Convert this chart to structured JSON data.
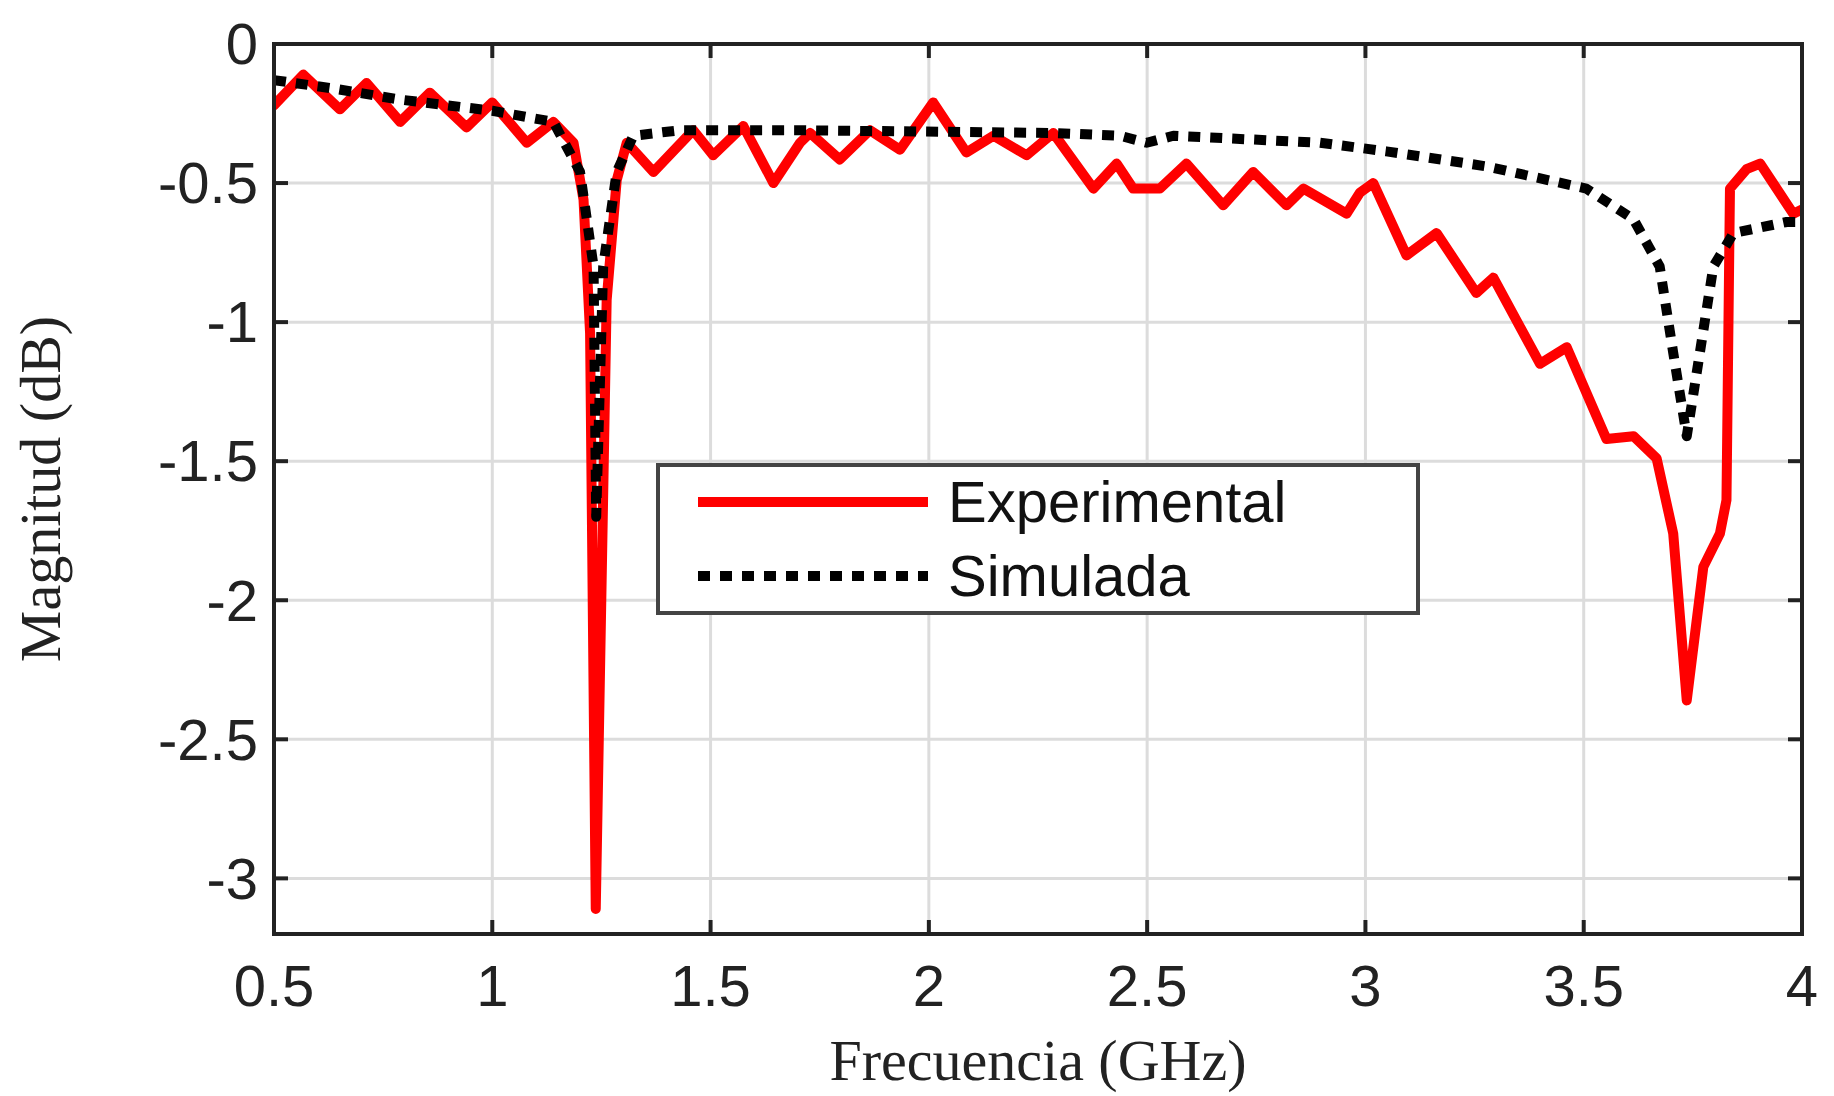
{
  "chart_data": {
    "type": "line",
    "xlabel": "Frecuencia (GHz)",
    "ylabel": "Magnitud (dB)",
    "xlim": [
      0.5,
      4
    ],
    "ylim": [
      -3.2,
      0
    ],
    "xticks": [
      0.5,
      1,
      1.5,
      2,
      2.5,
      3,
      3.5,
      4
    ],
    "yticks": [
      0,
      -0.5,
      -1,
      -1.5,
      -2,
      -2.5,
      -3
    ],
    "grid": true,
    "legend": "center",
    "series": [
      {
        "name": "Experimental",
        "color": "#ff0000",
        "line_style": "solid",
        "x": [
          0.5,
          0.567,
          0.651,
          0.712,
          0.789,
          0.857,
          0.941,
          1.0,
          1.079,
          1.14,
          1.186,
          1.209,
          1.224,
          1.237,
          1.262,
          1.285,
          1.308,
          1.369,
          1.46,
          1.506,
          1.575,
          1.644,
          1.705,
          1.728,
          1.796,
          1.865,
          1.934,
          2.01,
          2.086,
          2.148,
          2.224,
          2.285,
          2.377,
          2.43,
          2.468,
          2.529,
          2.59,
          2.674,
          2.743,
          2.819,
          2.858,
          2.957,
          2.987,
          3.018,
          3.094,
          3.163,
          3.254,
          3.293,
          3.4,
          3.461,
          3.552,
          3.614,
          3.667,
          3.705,
          3.736,
          3.774,
          3.812,
          3.827,
          3.835,
          3.873,
          3.904,
          3.98,
          4.0
        ],
        "values": [
          -0.22,
          -0.11,
          -0.235,
          -0.14,
          -0.28,
          -0.175,
          -0.3,
          -0.21,
          -0.355,
          -0.28,
          -0.355,
          -0.56,
          -1.04,
          -3.11,
          -0.92,
          -0.49,
          -0.355,
          -0.46,
          -0.31,
          -0.4,
          -0.295,
          -0.5,
          -0.355,
          -0.32,
          -0.415,
          -0.31,
          -0.38,
          -0.21,
          -0.39,
          -0.33,
          -0.4,
          -0.32,
          -0.52,
          -0.43,
          -0.52,
          -0.52,
          -0.43,
          -0.58,
          -0.46,
          -0.58,
          -0.52,
          -0.61,
          -0.535,
          -0.5,
          -0.76,
          -0.68,
          -0.895,
          -0.84,
          -1.15,
          -1.09,
          -1.42,
          -1.41,
          -1.49,
          -1.76,
          -2.36,
          -1.88,
          -1.76,
          -1.64,
          -0.52,
          -0.45,
          -0.43,
          -0.61,
          -0.595
        ]
      },
      {
        "name": "Simulada",
        "color": "#000000",
        "line_style": "dotted",
        "x": [
          0.5,
          0.636,
          0.789,
          1.0,
          1.14,
          1.201,
          1.232,
          1.238,
          1.254,
          1.285,
          1.323,
          1.43,
          1.705,
          2.285,
          2.438,
          2.499,
          2.56,
          2.896,
          3.048,
          3.277,
          3.506,
          3.614,
          3.674,
          3.705,
          3.736,
          3.766,
          3.797,
          3.843,
          3.965,
          4.0
        ],
        "values": [
          -0.13,
          -0.16,
          -0.2,
          -0.24,
          -0.28,
          -0.46,
          -0.8,
          -1.7,
          -0.8,
          -0.46,
          -0.33,
          -0.31,
          -0.31,
          -0.32,
          -0.33,
          -0.355,
          -0.33,
          -0.355,
          -0.386,
          -0.44,
          -0.52,
          -0.63,
          -0.8,
          -1.11,
          -1.41,
          -1.11,
          -0.8,
          -0.68,
          -0.64,
          -0.64
        ]
      }
    ]
  }
}
